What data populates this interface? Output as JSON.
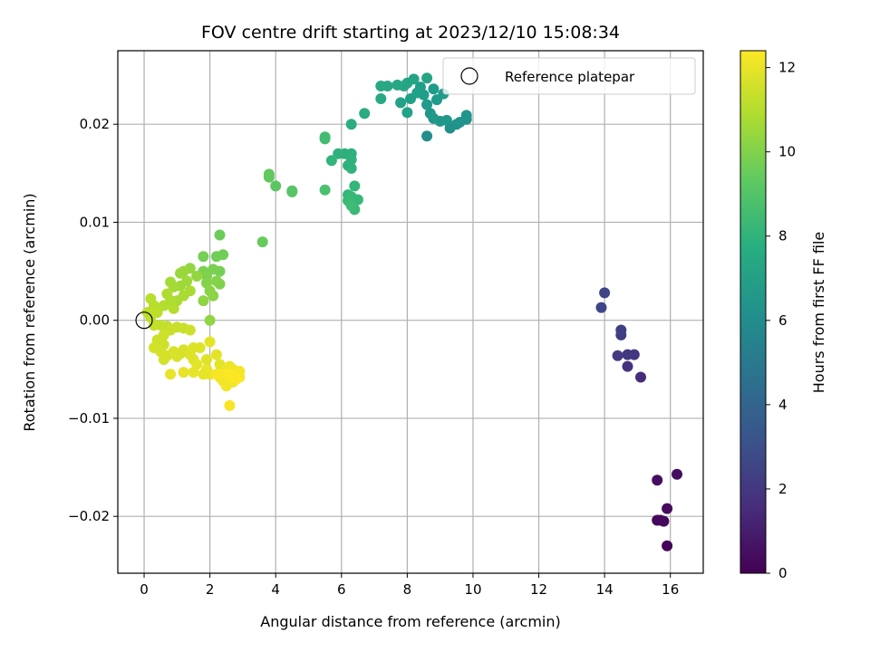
{
  "chart_data": {
    "type": "scatter",
    "title": "FOV centre drift starting at 2023/12/10 15:08:34",
    "xlabel": "Angular distance from reference (arcmin)",
    "ylabel": "Rotation from reference (arcmin)",
    "xlim": [
      -0.8,
      17.0
    ],
    "ylim": [
      -0.0258,
      0.0275
    ],
    "xticks": [
      0,
      2,
      4,
      6,
      8,
      10,
      12,
      14,
      16
    ],
    "xtick_labels": [
      "0",
      "2",
      "4",
      "6",
      "8",
      "10",
      "12",
      "14",
      "16"
    ],
    "yticks": [
      -0.02,
      -0.01,
      0.0,
      0.01,
      0.02
    ],
    "ytick_labels": [
      "−0.02",
      "−0.01",
      "0.00",
      "0.01",
      "0.02"
    ],
    "grid": true,
    "colormap": "viridis",
    "colorbar": {
      "label": "Hours from first FF file",
      "range": [
        0,
        12.4
      ],
      "ticks": [
        0,
        2,
        4,
        6,
        8,
        10,
        12
      ],
      "tick_labels": [
        "0",
        "2",
        "4",
        "6",
        "8",
        "10",
        "12"
      ]
    },
    "legend": {
      "position": "upper right",
      "entries": [
        "Reference platepar"
      ]
    },
    "reference_point": {
      "x": 0,
      "y": 0
    },
    "points": [
      [
        15.9,
        -0.023,
        0.1
      ],
      [
        15.6,
        -0.0204,
        0.2
      ],
      [
        15.8,
        -0.0205,
        0.25
      ],
      [
        15.7,
        -0.0204,
        0.3
      ],
      [
        15.9,
        -0.0192,
        0.4
      ],
      [
        15.6,
        -0.0163,
        0.45
      ],
      [
        16.2,
        -0.0157,
        0.5
      ],
      [
        15.1,
        -0.0058,
        1.6
      ],
      [
        14.7,
        -0.0047,
        1.8
      ],
      [
        14.9,
        -0.0035,
        1.9
      ],
      [
        14.7,
        -0.0035,
        2.0
      ],
      [
        14.4,
        -0.0036,
        2.1
      ],
      [
        14.5,
        -0.0015,
        2.2
      ],
      [
        14.5,
        -0.001,
        2.3
      ],
      [
        14.0,
        0.0028,
        2.5
      ],
      [
        13.9,
        0.0013,
        2.6
      ],
      [
        8.6,
        0.0188,
        6.1
      ],
      [
        9.3,
        0.0196,
        6.2
      ],
      [
        9.5,
        0.02,
        6.3
      ],
      [
        9.8,
        0.0205,
        6.3
      ],
      [
        9.8,
        0.0209,
        6.4
      ],
      [
        9.6,
        0.0202,
        6.4
      ],
      [
        9.2,
        0.0204,
        6.5
      ],
      [
        9.0,
        0.0203,
        6.5
      ],
      [
        8.8,
        0.0206,
        6.6
      ],
      [
        8.7,
        0.0211,
        6.6
      ],
      [
        8.6,
        0.022,
        6.7
      ],
      [
        8.9,
        0.0225,
        6.7
      ],
      [
        9.1,
        0.0231,
        6.8
      ],
      [
        8.8,
        0.0236,
        6.8
      ],
      [
        8.5,
        0.023,
        6.9
      ],
      [
        8.4,
        0.0238,
        6.9
      ],
      [
        8.3,
        0.0232,
        7.0
      ],
      [
        8.1,
        0.0226,
        7.0
      ],
      [
        8.0,
        0.0212,
        7.1
      ],
      [
        7.8,
        0.0222,
        7.1
      ],
      [
        8.0,
        0.0242,
        7.2
      ],
      [
        8.2,
        0.0246,
        7.2
      ],
      [
        8.6,
        0.0247,
        7.3
      ],
      [
        7.9,
        0.0239,
        7.3
      ],
      [
        7.7,
        0.024,
        7.4
      ],
      [
        7.4,
        0.0239,
        7.4
      ],
      [
        7.2,
        0.0239,
        7.5
      ],
      [
        7.2,
        0.0226,
        7.5
      ],
      [
        6.7,
        0.0211,
        7.6
      ],
      [
        6.3,
        0.02,
        7.7
      ],
      [
        6.3,
        0.017,
        7.8
      ],
      [
        6.1,
        0.017,
        7.8
      ],
      [
        5.9,
        0.017,
        7.9
      ],
      [
        6.3,
        0.0164,
        7.9
      ],
      [
        6.2,
        0.0158,
        8.0
      ],
      [
        6.3,
        0.0155,
        8.0
      ],
      [
        5.7,
        0.0163,
        8.1
      ],
      [
        6.4,
        0.0137,
        8.2
      ],
      [
        6.2,
        0.0128,
        8.2
      ],
      [
        6.5,
        0.0123,
        8.3
      ],
      [
        6.3,
        0.0126,
        8.3
      ],
      [
        6.2,
        0.0122,
        8.4
      ],
      [
        6.4,
        0.0113,
        8.4
      ],
      [
        6.3,
        0.0117,
        8.5
      ],
      [
        5.5,
        0.0187,
        8.6
      ],
      [
        5.5,
        0.0185,
        8.6
      ],
      [
        5.5,
        0.0133,
        8.8
      ],
      [
        4.5,
        0.0131,
        9.0
      ],
      [
        4.5,
        0.0132,
        9.1
      ],
      [
        4.0,
        0.0137,
        9.2
      ],
      [
        3.8,
        0.0146,
        9.3
      ],
      [
        3.8,
        0.0149,
        9.4
      ],
      [
        3.6,
        0.008,
        9.5
      ],
      [
        2.3,
        0.0087,
        9.6
      ],
      [
        2.4,
        0.0067,
        9.7
      ],
      [
        2.2,
        0.0065,
        9.7
      ],
      [
        1.8,
        0.0065,
        9.8
      ],
      [
        2.3,
        0.005,
        9.8
      ],
      [
        2.1,
        0.0052,
        9.9
      ],
      [
        1.8,
        0.005,
        9.9
      ],
      [
        1.9,
        0.0045,
        10.0
      ],
      [
        2.3,
        0.0037,
        10.0
      ],
      [
        2.2,
        0.004,
        10.1
      ],
      [
        1.9,
        0.0038,
        10.1
      ],
      [
        2.0,
        0.003,
        10.2
      ],
      [
        2.1,
        0.0025,
        10.2
      ],
      [
        1.8,
        0.002,
        10.3
      ],
      [
        2.0,
        0.0,
        10.3
      ],
      [
        1.6,
        0.0045,
        10.4
      ],
      [
        1.4,
        0.0053,
        10.4
      ],
      [
        1.2,
        0.005,
        10.5
      ],
      [
        1.1,
        0.0048,
        10.5
      ],
      [
        1.3,
        0.004,
        10.6
      ],
      [
        1.1,
        0.0035,
        10.6
      ],
      [
        0.9,
        0.0034,
        10.7
      ],
      [
        0.8,
        0.0039,
        10.7
      ],
      [
        1.4,
        0.003,
        10.8
      ],
      [
        1.2,
        0.0025,
        10.8
      ],
      [
        1.0,
        0.002,
        10.8
      ],
      [
        0.8,
        0.002,
        10.9
      ],
      [
        0.7,
        0.0027,
        10.9
      ],
      [
        0.6,
        0.0015,
        11.0
      ],
      [
        0.9,
        0.0012,
        11.0
      ],
      [
        0.2,
        0.0022,
        11.1
      ],
      [
        0.3,
        0.0015,
        11.1
      ],
      [
        0.4,
        0.0008,
        11.2
      ],
      [
        0.1,
        0.0008,
        11.2
      ],
      [
        0.2,
        0.0003,
        11.2
      ],
      [
        0.3,
        -0.0005,
        11.3
      ],
      [
        0.5,
        -0.0005,
        11.3
      ],
      [
        0.7,
        -0.0006,
        11.3
      ],
      [
        0.8,
        -0.001,
        11.4
      ],
      [
        1.0,
        -0.0007,
        11.4
      ],
      [
        1.2,
        -0.0008,
        11.4
      ],
      [
        1.4,
        -0.001,
        11.5
      ],
      [
        0.6,
        -0.0015,
        11.5
      ],
      [
        0.4,
        -0.002,
        11.5
      ],
      [
        0.6,
        -0.0025,
        11.5
      ],
      [
        0.3,
        -0.0028,
        11.6
      ],
      [
        0.5,
        -0.0032,
        11.6
      ],
      [
        0.7,
        -0.0036,
        11.6
      ],
      [
        0.6,
        -0.004,
        11.6
      ],
      [
        0.9,
        -0.0032,
        11.7
      ],
      [
        1.0,
        -0.0037,
        11.7
      ],
      [
        1.2,
        -0.003,
        11.7
      ],
      [
        1.1,
        -0.0034,
        11.7
      ],
      [
        1.4,
        -0.0035,
        11.8
      ],
      [
        1.5,
        -0.0028,
        11.8
      ],
      [
        1.7,
        -0.0028,
        11.8
      ],
      [
        1.5,
        -0.004,
        11.8
      ],
      [
        1.9,
        -0.004,
        11.8
      ],
      [
        2.0,
        -0.0022,
        11.9
      ],
      [
        1.6,
        -0.0045,
        11.9
      ],
      [
        2.2,
        -0.0035,
        11.9
      ],
      [
        2.3,
        -0.0045,
        11.9
      ],
      [
        1.9,
        -0.005,
        12.0
      ],
      [
        2.0,
        -0.0055,
        12.0
      ],
      [
        1.8,
        -0.0055,
        12.0
      ],
      [
        1.5,
        -0.0053,
        12.0
      ],
      [
        1.2,
        -0.0053,
        12.0
      ],
      [
        0.8,
        -0.0055,
        12.0
      ],
      [
        2.3,
        -0.0058,
        12.1
      ],
      [
        2.5,
        -0.005,
        12.1
      ],
      [
        2.6,
        -0.0047,
        12.1
      ],
      [
        2.7,
        -0.005,
        12.1
      ],
      [
        2.8,
        -0.0057,
        12.1
      ],
      [
        2.4,
        -0.0062,
        12.2
      ],
      [
        2.5,
        -0.0067,
        12.2
      ],
      [
        2.6,
        -0.006,
        12.2
      ],
      [
        2.7,
        -0.0063,
        12.2
      ],
      [
        2.9,
        -0.0052,
        12.2
      ],
      [
        2.9,
        -0.0058,
        12.3
      ],
      [
        2.6,
        -0.0087,
        12.3
      ],
      [
        2.2,
        -0.0055,
        12.3
      ],
      [
        2.4,
        -0.0055,
        12.3
      ],
      [
        2.6,
        -0.0055,
        12.4
      ],
      [
        2.8,
        -0.006,
        12.4
      ]
    ]
  }
}
